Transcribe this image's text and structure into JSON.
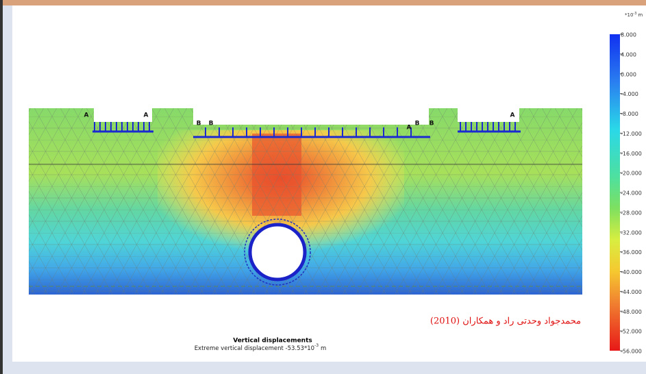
{
  "legend": {
    "unit": {
      "base": "*10",
      "exponent": "-3",
      "suffix": "m"
    },
    "labels": [
      "8.000",
      "4.000",
      "0.000",
      "-4.000",
      "-8.000",
      "-12.000",
      "-16.000",
      "-20.000",
      "-24.000",
      "-28.000",
      "-32.000",
      "-36.000",
      "-40.000",
      "-44.000",
      "-48.000",
      "-52.000",
      "-56.000"
    ]
  },
  "caption": {
    "title": "Vertical displacements",
    "subtitle": "Extreme vertical displacement -53.53*10",
    "subtitle_exponent": "-3",
    "subtitle_suffix": "m"
  },
  "credit": "محمدجواد وحدتی راد و همکاران (2010)",
  "markers": [
    "A",
    "A",
    "B",
    "B",
    "A",
    "B",
    "B",
    "A"
  ]
}
